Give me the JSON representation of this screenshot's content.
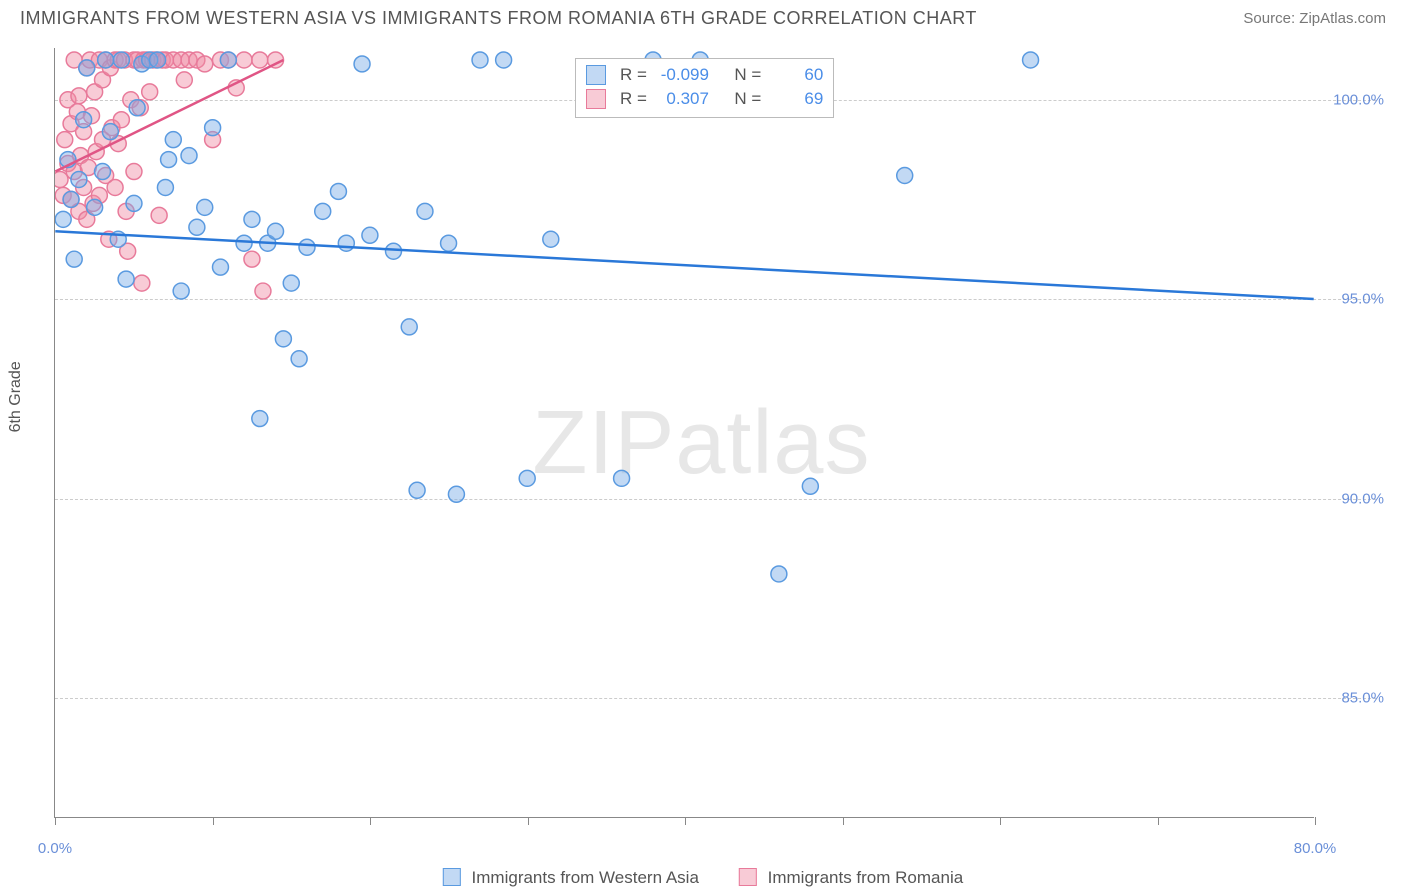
{
  "header": {
    "title": "IMMIGRANTS FROM WESTERN ASIA VS IMMIGRANTS FROM ROMANIA 6TH GRADE CORRELATION CHART",
    "source_prefix": "Source: ",
    "source_name": "ZipAtlas.com"
  },
  "axes": {
    "ylabel": "6th Grade",
    "x_min": 0.0,
    "x_max": 80.0,
    "y_min": 82.0,
    "y_max": 101.3,
    "x_ticks": [
      0,
      10,
      20,
      30,
      40,
      50,
      60,
      70,
      80
    ],
    "x_tick_labels": {
      "0": "0.0%",
      "80": "80.0%"
    },
    "y_grid": [
      85.0,
      90.0,
      95.0,
      100.0
    ],
    "y_grid_labels": [
      "85.0%",
      "90.0%",
      "95.0%",
      "100.0%"
    ]
  },
  "colors": {
    "blue_fill": "rgba(120,170,230,0.45)",
    "blue_stroke": "#5a9ae0",
    "blue_line": "#2a78d8",
    "pink_fill": "rgba(240,140,165,0.45)",
    "pink_stroke": "#e87a9a",
    "pink_line": "#e05585",
    "grid": "#cccccc",
    "axis": "#888888",
    "tick_text": "#6a8fd8",
    "text": "#555555"
  },
  "series": {
    "a": {
      "label": "Immigrants from Western Asia",
      "r_value": "-0.099",
      "n_value": "60",
      "marker_radius": 8,
      "trend": {
        "x1": 0,
        "y1": 96.7,
        "x2": 80,
        "y2": 95.0
      },
      "points": [
        [
          0.5,
          97.0
        ],
        [
          0.8,
          98.5
        ],
        [
          1.0,
          97.5
        ],
        [
          1.2,
          96.0
        ],
        [
          1.5,
          98.0
        ],
        [
          1.8,
          99.5
        ],
        [
          2.0,
          100.8
        ],
        [
          2.5,
          97.3
        ],
        [
          3.0,
          98.2
        ],
        [
          3.2,
          101.0
        ],
        [
          3.5,
          99.2
        ],
        [
          4.0,
          96.5
        ],
        [
          4.2,
          101.0
        ],
        [
          4.5,
          95.5
        ],
        [
          5.0,
          97.4
        ],
        [
          5.2,
          99.8
        ],
        [
          5.5,
          100.9
        ],
        [
          6.0,
          101.0
        ],
        [
          6.5,
          101.0
        ],
        [
          7.0,
          97.8
        ],
        [
          7.2,
          98.5
        ],
        [
          7.5,
          99.0
        ],
        [
          8.0,
          95.2
        ],
        [
          8.5,
          98.6
        ],
        [
          9.0,
          96.8
        ],
        [
          9.5,
          97.3
        ],
        [
          10.0,
          99.3
        ],
        [
          10.5,
          95.8
        ],
        [
          11.0,
          101.0
        ],
        [
          12.0,
          96.4
        ],
        [
          12.5,
          97.0
        ],
        [
          13.0,
          92.0
        ],
        [
          13.5,
          96.4
        ],
        [
          14.0,
          96.7
        ],
        [
          14.5,
          94.0
        ],
        [
          15.0,
          95.4
        ],
        [
          15.5,
          93.5
        ],
        [
          16.0,
          96.3
        ],
        [
          17.0,
          97.2
        ],
        [
          18.0,
          97.7
        ],
        [
          18.5,
          96.4
        ],
        [
          19.5,
          100.9
        ],
        [
          20.0,
          96.6
        ],
        [
          21.5,
          96.2
        ],
        [
          22.5,
          94.3
        ],
        [
          23.0,
          90.2
        ],
        [
          23.5,
          97.2
        ],
        [
          25.0,
          96.4
        ],
        [
          25.5,
          90.1
        ],
        [
          27.0,
          101.0
        ],
        [
          28.5,
          101.0
        ],
        [
          30.0,
          90.5
        ],
        [
          31.5,
          96.5
        ],
        [
          36.0,
          90.5
        ],
        [
          38.0,
          101.0
        ],
        [
          41.0,
          101.0
        ],
        [
          46.0,
          88.1
        ],
        [
          48.0,
          90.3
        ],
        [
          54.0,
          98.1
        ],
        [
          62.0,
          101.0
        ]
      ]
    },
    "b": {
      "label": "Immigrants from Romania",
      "r_value": "0.307",
      "n_value": "69",
      "marker_radius": 8,
      "trend": {
        "x1": 0,
        "y1": 98.2,
        "x2": 14.5,
        "y2": 101.0
      },
      "points": [
        [
          0.3,
          98.0
        ],
        [
          0.5,
          97.6
        ],
        [
          0.6,
          99.0
        ],
        [
          0.8,
          98.4
        ],
        [
          0.8,
          100.0
        ],
        [
          1.0,
          99.4
        ],
        [
          1.0,
          97.5
        ],
        [
          1.2,
          98.2
        ],
        [
          1.2,
          101.0
        ],
        [
          1.4,
          99.7
        ],
        [
          1.5,
          97.2
        ],
        [
          1.5,
          100.1
        ],
        [
          1.6,
          98.6
        ],
        [
          1.8,
          97.8
        ],
        [
          1.8,
          99.2
        ],
        [
          2.0,
          100.8
        ],
        [
          2.0,
          97.0
        ],
        [
          2.1,
          98.3
        ],
        [
          2.2,
          101.0
        ],
        [
          2.3,
          99.6
        ],
        [
          2.4,
          97.4
        ],
        [
          2.5,
          100.2
        ],
        [
          2.6,
          98.7
        ],
        [
          2.8,
          101.0
        ],
        [
          2.8,
          97.6
        ],
        [
          3.0,
          99.0
        ],
        [
          3.0,
          100.5
        ],
        [
          3.2,
          98.1
        ],
        [
          3.2,
          101.0
        ],
        [
          3.4,
          96.5
        ],
        [
          3.5,
          100.8
        ],
        [
          3.6,
          99.3
        ],
        [
          3.8,
          101.0
        ],
        [
          3.8,
          97.8
        ],
        [
          4.0,
          98.9
        ],
        [
          4.0,
          101.0
        ],
        [
          4.2,
          99.5
        ],
        [
          4.4,
          101.0
        ],
        [
          4.5,
          97.2
        ],
        [
          4.6,
          96.2
        ],
        [
          4.8,
          100.0
        ],
        [
          5.0,
          101.0
        ],
        [
          5.0,
          98.2
        ],
        [
          5.2,
          101.0
        ],
        [
          5.4,
          99.8
        ],
        [
          5.5,
          95.4
        ],
        [
          5.6,
          101.0
        ],
        [
          5.8,
          101.0
        ],
        [
          6.0,
          100.2
        ],
        [
          6.2,
          101.0
        ],
        [
          6.4,
          101.0
        ],
        [
          6.6,
          97.1
        ],
        [
          6.8,
          101.0
        ],
        [
          7.0,
          101.0
        ],
        [
          7.5,
          101.0
        ],
        [
          8.0,
          101.0
        ],
        [
          8.2,
          100.5
        ],
        [
          8.5,
          101.0
        ],
        [
          9.0,
          101.0
        ],
        [
          9.5,
          100.9
        ],
        [
          10.0,
          99.0
        ],
        [
          10.5,
          101.0
        ],
        [
          11.0,
          101.0
        ],
        [
          11.5,
          100.3
        ],
        [
          12.0,
          101.0
        ],
        [
          12.5,
          96.0
        ],
        [
          13.0,
          101.0
        ],
        [
          13.2,
          95.2
        ],
        [
          14.0,
          101.0
        ]
      ]
    }
  },
  "bottom_legend": {
    "a_label": "Immigrants from Western Asia",
    "b_label": "Immigrants from Romania"
  },
  "stats_legend": {
    "r_prefix": "R = ",
    "n_prefix": "N = "
  },
  "watermark": {
    "part1": "ZIP",
    "part2": "atlas"
  }
}
